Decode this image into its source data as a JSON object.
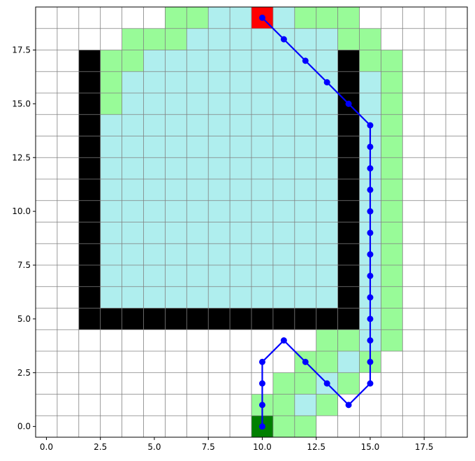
{
  "chart_data": {
    "type": "heatmap",
    "title": "",
    "xlabel": "",
    "ylabel": "",
    "xlim": [
      -0.5,
      19.5
    ],
    "ylim": [
      -0.5,
      19.5
    ],
    "grid": true,
    "xticks": [
      0.0,
      2.5,
      5.0,
      7.5,
      10.0,
      12.5,
      15.0,
      17.5
    ],
    "yticks": [
      0.0,
      2.5,
      5.0,
      7.5,
      10.0,
      12.5,
      15.0,
      17.5
    ],
    "tick_labels": [
      "0.0",
      "2.5",
      "5.0",
      "7.5",
      "10.0",
      "12.5",
      "15.0",
      "17.5"
    ],
    "colors": {
      "wall": "#000000",
      "explored": "#afeeee",
      "frontier": "#98fb98",
      "start": "#008000",
      "goal": "#ff0000",
      "path": "#0000ff",
      "grid": "#808080"
    },
    "start": [
      10,
      0
    ],
    "goal": [
      10,
      19
    ],
    "path": [
      [
        10,
        0
      ],
      [
        10,
        1
      ],
      [
        10,
        2
      ],
      [
        10,
        3
      ],
      [
        11,
        4
      ],
      [
        12,
        3
      ],
      [
        13,
        2
      ],
      [
        14,
        1
      ],
      [
        15,
        2
      ],
      [
        15,
        3
      ],
      [
        15,
        4
      ],
      [
        15,
        5
      ],
      [
        15,
        6
      ],
      [
        15,
        7
      ],
      [
        15,
        8
      ],
      [
        15,
        9
      ],
      [
        15,
        10
      ],
      [
        15,
        11
      ],
      [
        15,
        12
      ],
      [
        15,
        13
      ],
      [
        15,
        14
      ],
      [
        14,
        15
      ],
      [
        13,
        16
      ],
      [
        12,
        17
      ],
      [
        11,
        18
      ],
      [
        10,
        19
      ]
    ],
    "rows": [
      "......FFEEEEFFF.....",
      "....FFFEEEEEEEFF....",
      "..WFFEEEEEEEEEWFF...",
      "..WFEEEEEEEEEEWEF...",
      "..WFEEEEEEEEEEWEF...",
      "..WEEEEEEEEEEEWEF...",
      "..WEEEEEEEEEEEWEF...",
      "..WEEEEEEEEEEEWEF...",
      "..WEEEEEEEEEEEWEF...",
      "..WEEEEEEEEEEEWEF...",
      "..WEEEEEEEEEEEWEF...",
      "..WEEEEEEEEEEEWEF...",
      "..WEEEEEEEEEEEWEF...",
      "..WEEEEEEEEEEEWEF...",
      "..WWWWWWWWWWWWWEF...",
      ".............FFEF...",
      "............FFEF....",
      "...........FFEF.....",
      "..........FFEF......",
      "..........EFF......."
    ]
  }
}
